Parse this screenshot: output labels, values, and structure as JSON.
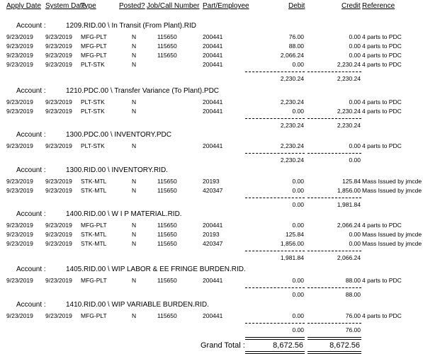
{
  "headers": {
    "apply_date": "Apply Date",
    "system_date": "System Date",
    "type": "Type",
    "posted": "Posted?",
    "job": "Job/Call Number",
    "part": "Part/Employee",
    "debit": "Debit",
    "credit": "Credit",
    "reference": "Reference"
  },
  "account_label": "Account :",
  "sections": [
    {
      "account": "1209.RID.00 \\ In Transit (From Plant).RID",
      "rows": [
        {
          "apply": "9/23/2019",
          "system": "9/23/2019",
          "type": "MFG-PLT",
          "posted": "N",
          "job": "115650",
          "part": "200441",
          "debit": "76.00",
          "credit": "0.00",
          "ref": "4 parts to PDC"
        },
        {
          "apply": "9/23/2019",
          "system": "9/23/2019",
          "type": "MFG-PLT",
          "posted": "N",
          "job": "115650",
          "part": "200441",
          "debit": "88.00",
          "credit": "0.00",
          "ref": "4 parts to PDC"
        },
        {
          "apply": "9/23/2019",
          "system": "9/23/2019",
          "type": "MFG-PLT",
          "posted": "N",
          "job": "115650",
          "part": "200441",
          "debit": "2,066.24",
          "credit": "0.00",
          "ref": "4 parts to PDC"
        },
        {
          "apply": "9/23/2019",
          "system": "9/23/2019",
          "type": "PLT-STK",
          "posted": "N",
          "job": "",
          "part": "200441",
          "debit": "0.00",
          "credit": "2,230.24",
          "ref": "4 parts to PDC"
        }
      ],
      "total_debit": "2,230.24",
      "total_credit": "2,230.24"
    },
    {
      "account": "1210.PDC.00 \\ Transfer Variance (To Plant).PDC",
      "rows": [
        {
          "apply": "9/23/2019",
          "system": "9/23/2019",
          "type": "PLT-STK",
          "posted": "N",
          "job": "",
          "part": "200441",
          "debit": "2,230.24",
          "credit": "0.00",
          "ref": "4 parts to PDC"
        },
        {
          "apply": "9/23/2019",
          "system": "9/23/2019",
          "type": "PLT-STK",
          "posted": "N",
          "job": "",
          "part": "200441",
          "debit": "0.00",
          "credit": "2,230.24",
          "ref": "4 parts to PDC"
        }
      ],
      "total_debit": "2,230.24",
      "total_credit": "2,230.24"
    },
    {
      "account": "1300.PDC.00 \\ INVENTORY.PDC",
      "rows": [
        {
          "apply": "9/23/2019",
          "system": "9/23/2019",
          "type": "PLT-STK",
          "posted": "N",
          "job": "",
          "part": "200441",
          "debit": "2,230.24",
          "credit": "0.00",
          "ref": "4 parts to PDC"
        }
      ],
      "total_debit": "2,230.24",
      "total_credit": "0.00"
    },
    {
      "account": "1300.RID.00 \\ INVENTORY.RID.",
      "rows": [
        {
          "apply": "9/23/2019",
          "system": "9/23/2019",
          "type": "STK-MTL",
          "posted": "N",
          "job": "115650",
          "part": "20193",
          "debit": "0.00",
          "credit": "125.84",
          "ref": "Mass Issued by jmcde"
        },
        {
          "apply": "9/23/2019",
          "system": "9/23/2019",
          "type": "STK-MTL",
          "posted": "N",
          "job": "115650",
          "part": "420347",
          "debit": "0.00",
          "credit": "1,856.00",
          "ref": "Mass Issued by jmcde"
        }
      ],
      "total_debit": "0.00",
      "total_credit": "1,981.84"
    },
    {
      "account": "1400.RID.00 \\ W I P MATERIAL.RID.",
      "rows": [
        {
          "apply": "9/23/2019",
          "system": "9/23/2019",
          "type": "MFG-PLT",
          "posted": "N",
          "job": "115650",
          "part": "200441",
          "debit": "0.00",
          "credit": "2,066.24",
          "ref": "4 parts to PDC"
        },
        {
          "apply": "9/23/2019",
          "system": "9/23/2019",
          "type": "STK-MTL",
          "posted": "N",
          "job": "115650",
          "part": "20193",
          "debit": "125.84",
          "credit": "0.00",
          "ref": "Mass Issued by jmcde"
        },
        {
          "apply": "9/23/2019",
          "system": "9/23/2019",
          "type": "STK-MTL",
          "posted": "N",
          "job": "115650",
          "part": "420347",
          "debit": "1,856.00",
          "credit": "0.00",
          "ref": "Mass Issued by jmcde"
        }
      ],
      "total_debit": "1,981.84",
      "total_credit": "2,066.24"
    },
    {
      "account": "1405.RID.00 \\ WIP LABOR & EE FRINGE BURDEN.RID.",
      "rows": [
        {
          "apply": "9/23/2019",
          "system": "9/23/2019",
          "type": "MFG-PLT",
          "posted": "N",
          "job": "115650",
          "part": "200441",
          "debit": "0.00",
          "credit": "88.00",
          "ref": "4 parts to PDC"
        }
      ],
      "total_debit": "0.00",
      "total_credit": "88.00"
    },
    {
      "account": "1410.RID.00 \\ WIP VARIABLE BURDEN.RID.",
      "rows": [
        {
          "apply": "9/23/2019",
          "system": "9/23/2019",
          "type": "MFG-PLT",
          "posted": "N",
          "job": "115650",
          "part": "200441",
          "debit": "0.00",
          "credit": "76.00",
          "ref": "4 parts to PDC"
        }
      ],
      "total_debit": "0.00",
      "total_credit": "76.00"
    }
  ],
  "grand_total": {
    "label": "Grand Total :",
    "debit": "8,672.56",
    "credit": "8,672.56"
  }
}
